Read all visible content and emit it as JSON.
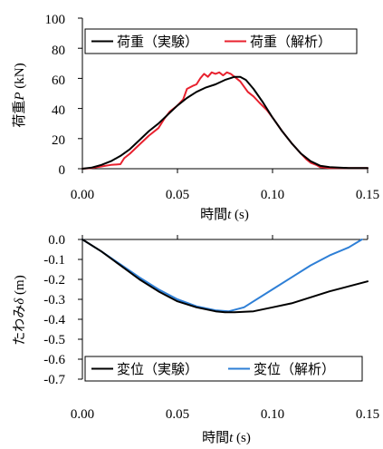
{
  "chart_data": [
    {
      "type": "line",
      "xlabel_main": "時間",
      "xlabel_sym": "t",
      "xlabel_unit": " (s)",
      "ylabel_main": "荷重",
      "ylabel_sym": "P",
      "ylabel_unit": " (kN)",
      "xlim": [
        0,
        0.15
      ],
      "ylim": [
        0,
        100
      ],
      "xticks": [
        0,
        0.05,
        0.1,
        0.15
      ],
      "xtick_labels": [
        "0.00",
        "0.05",
        "0.10",
        "0.15"
      ],
      "yticks": [
        0,
        20,
        40,
        60,
        80,
        100
      ],
      "ytick_labels": [
        "0",
        "20",
        "40",
        "60",
        "80",
        "100"
      ],
      "grid": false,
      "legend_position": "top",
      "series": [
        {
          "name": "荷重（実験）",
          "color": "#000000",
          "points": [
            [
              0,
              0
            ],
            [
              0.005,
              0.8
            ],
            [
              0.01,
              2.5
            ],
            [
              0.015,
              5
            ],
            [
              0.02,
              8.5
            ],
            [
              0.025,
              13
            ],
            [
              0.03,
              19
            ],
            [
              0.035,
              25
            ],
            [
              0.04,
              30
            ],
            [
              0.045,
              36
            ],
            [
              0.05,
              42
            ],
            [
              0.055,
              47
            ],
            [
              0.06,
              51
            ],
            [
              0.065,
              54
            ],
            [
              0.07,
              56
            ],
            [
              0.075,
              59
            ],
            [
              0.08,
              61
            ],
            [
              0.083,
              61
            ],
            [
              0.086,
              59
            ],
            [
              0.09,
              53
            ],
            [
              0.095,
              44
            ],
            [
              0.1,
              34
            ],
            [
              0.105,
              25
            ],
            [
              0.11,
              17
            ],
            [
              0.115,
              10
            ],
            [
              0.12,
              5
            ],
            [
              0.125,
              2
            ],
            [
              0.13,
              1
            ],
            [
              0.14,
              0.5
            ],
            [
              0.15,
              0.5
            ]
          ]
        },
        {
          "name": "荷重（解析）",
          "color": "#e8212e",
          "points": [
            [
              0,
              0
            ],
            [
              0.005,
              0.5
            ],
            [
              0.01,
              1.5
            ],
            [
              0.015,
              2.5
            ],
            [
              0.02,
              3
            ],
            [
              0.022,
              7
            ],
            [
              0.025,
              10
            ],
            [
              0.03,
              16
            ],
            [
              0.035,
              22
            ],
            [
              0.04,
              27
            ],
            [
              0.043,
              33
            ],
            [
              0.046,
              38
            ],
            [
              0.048,
              40
            ],
            [
              0.05,
              42
            ],
            [
              0.053,
              46
            ],
            [
              0.055,
              53
            ],
            [
              0.058,
              55
            ],
            [
              0.06,
              56
            ],
            [
              0.062,
              60
            ],
            [
              0.064,
              63
            ],
            [
              0.066,
              61
            ],
            [
              0.068,
              64
            ],
            [
              0.07,
              63
            ],
            [
              0.072,
              64
            ],
            [
              0.074,
              62
            ],
            [
              0.076,
              64
            ],
            [
              0.078,
              63
            ],
            [
              0.08,
              61
            ],
            [
              0.083,
              58
            ],
            [
              0.087,
              51
            ],
            [
              0.09,
              48
            ],
            [
              0.093,
              44
            ],
            [
              0.097,
              39
            ],
            [
              0.1,
              34
            ],
            [
              0.105,
              25
            ],
            [
              0.11,
              17
            ],
            [
              0.115,
              10
            ],
            [
              0.118,
              6
            ],
            [
              0.12,
              4
            ],
            [
              0.123,
              2.5
            ],
            [
              0.125,
              1
            ],
            [
              0.13,
              0.5
            ],
            [
              0.14,
              0.5
            ],
            [
              0.15,
              0.5
            ]
          ]
        }
      ]
    },
    {
      "type": "line",
      "xlabel_main": "時間",
      "xlabel_sym": "t",
      "xlabel_unit": " (s)",
      "ylabel_main": "たわみ",
      "ylabel_sym": "δ",
      "ylabel_unit": " (m)",
      "xlim": [
        0,
        0.15
      ],
      "ylim": [
        -0.7,
        0
      ],
      "xticks": [
        0,
        0.05,
        0.1,
        0.15
      ],
      "xtick_labels": [
        "0.00",
        "0.05",
        "0.10",
        "0.15"
      ],
      "yticks": [
        0,
        -0.1,
        -0.2,
        -0.3,
        -0.4,
        -0.5,
        -0.6,
        -0.7
      ],
      "ytick_labels": [
        "0.0",
        "-0.1",
        "-0.2",
        "-0.3",
        "-0.4",
        "-0.5",
        "-0.6",
        "-0.7"
      ],
      "grid": false,
      "legend_position": "bottom",
      "series": [
        {
          "name": "変位（実験）",
          "color": "#000000",
          "points": [
            [
              0,
              0
            ],
            [
              0.01,
              -0.06
            ],
            [
              0.02,
              -0.13
            ],
            [
              0.03,
              -0.2
            ],
            [
              0.04,
              -0.26
            ],
            [
              0.05,
              -0.31
            ],
            [
              0.06,
              -0.34
            ],
            [
              0.07,
              -0.36
            ],
            [
              0.075,
              -0.365
            ],
            [
              0.08,
              -0.365
            ],
            [
              0.09,
              -0.36
            ],
            [
              0.1,
              -0.34
            ],
            [
              0.11,
              -0.32
            ],
            [
              0.12,
              -0.29
            ],
            [
              0.13,
              -0.26
            ],
            [
              0.14,
              -0.235
            ],
            [
              0.15,
              -0.21
            ]
          ]
        },
        {
          "name": "変位（解析）",
          "color": "#2e7fd6",
          "points": [
            [
              0,
              0
            ],
            [
              0.01,
              -0.06
            ],
            [
              0.02,
              -0.125
            ],
            [
              0.03,
              -0.19
            ],
            [
              0.04,
              -0.25
            ],
            [
              0.05,
              -0.3
            ],
            [
              0.06,
              -0.335
            ],
            [
              0.07,
              -0.355
            ],
            [
              0.077,
              -0.36
            ],
            [
              0.085,
              -0.34
            ],
            [
              0.09,
              -0.31
            ],
            [
              0.1,
              -0.25
            ],
            [
              0.11,
              -0.19
            ],
            [
              0.12,
              -0.13
            ],
            [
              0.13,
              -0.08
            ],
            [
              0.14,
              -0.04
            ],
            [
              0.147,
              0
            ]
          ]
        }
      ]
    }
  ]
}
